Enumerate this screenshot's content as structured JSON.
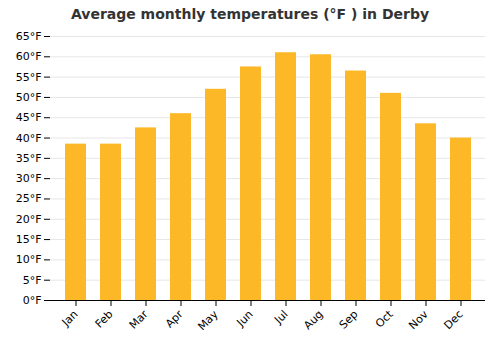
{
  "chart_data": {
    "type": "bar",
    "title": "Average monthly temperatures (°F ) in Derby",
    "categories": [
      "Jan",
      "Feb",
      "Mar",
      "Apr",
      "May",
      "Jun",
      "Jul",
      "Aug",
      "Sep",
      "Oct",
      "Nov",
      "Dec"
    ],
    "values": [
      38.5,
      38.5,
      42.5,
      46.0,
      52.0,
      57.5,
      61.0,
      60.5,
      56.5,
      51.0,
      43.5,
      40.0
    ],
    "color": "#FDB827",
    "ylim": [
      0,
      65
    ],
    "yticks": [
      {
        "value": 0,
        "label": "0°F"
      },
      {
        "value": 5,
        "label": "5°F"
      },
      {
        "value": 10,
        "label": "10°F"
      },
      {
        "value": 15,
        "label": "15°F"
      },
      {
        "value": 20,
        "label": "20°F"
      },
      {
        "value": 25,
        "label": "25°F"
      },
      {
        "value": 30,
        "label": "30°F"
      },
      {
        "value": 35,
        "label": "35°F"
      },
      {
        "value": 40,
        "label": "40°F"
      },
      {
        "value": 45,
        "label": "45°F"
      },
      {
        "value": 50,
        "label": "50°F"
      },
      {
        "value": 55,
        "label": "55°F"
      },
      {
        "value": 60,
        "label": "60°F"
      },
      {
        "value": 65,
        "label": "65°F"
      }
    ],
    "grid": true
  }
}
